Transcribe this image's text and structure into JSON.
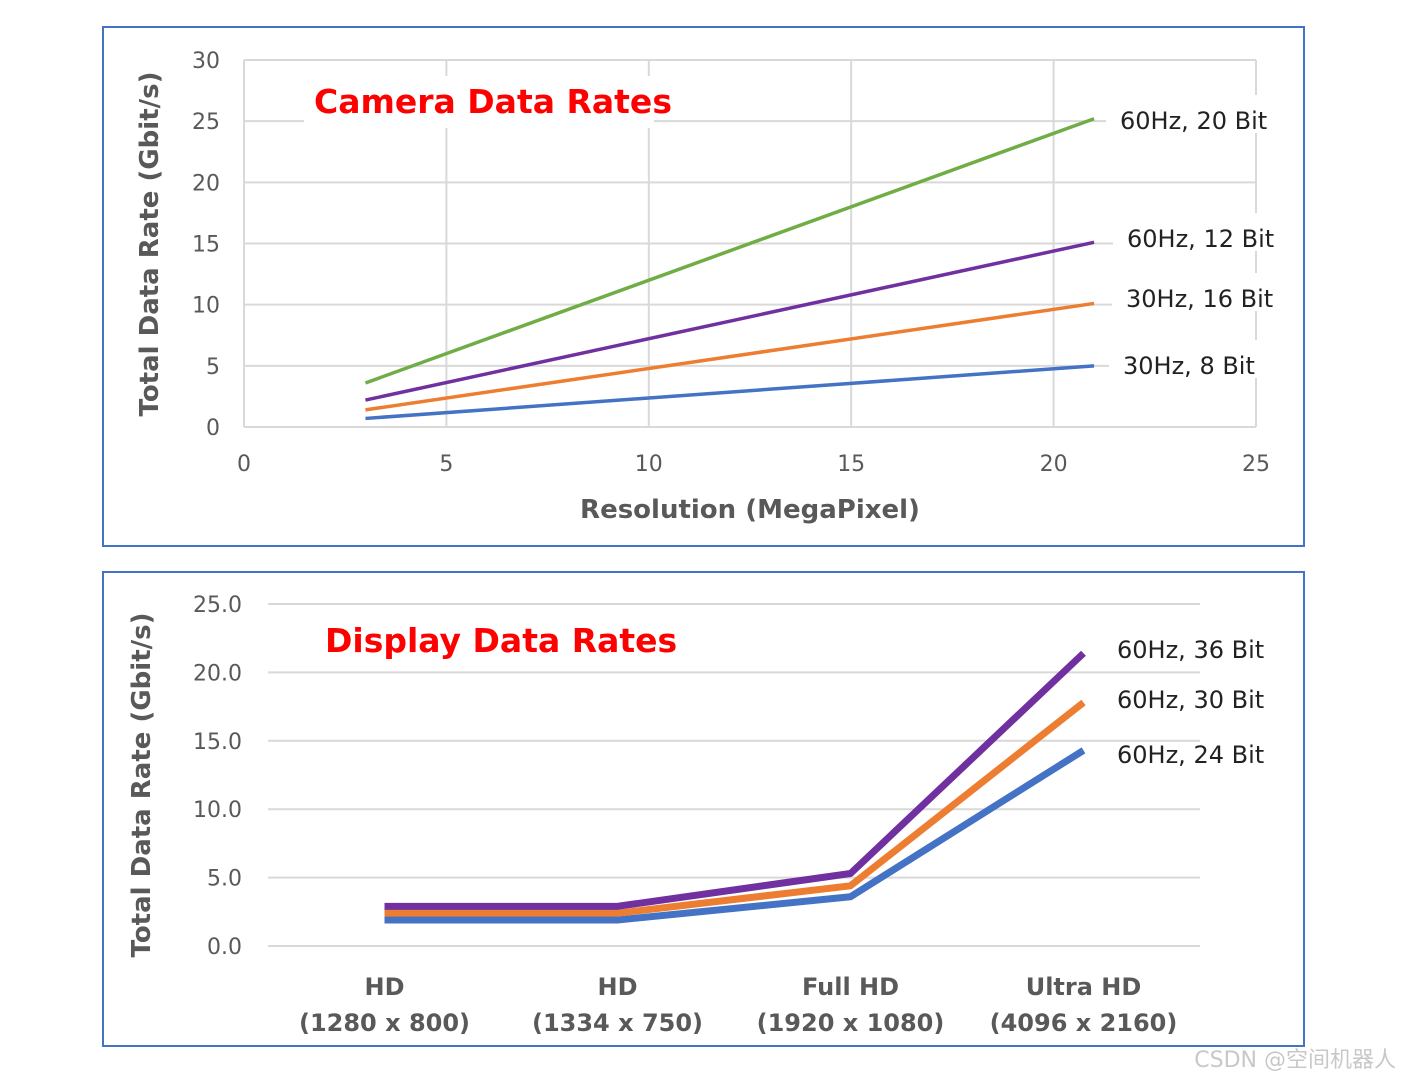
{
  "chart_data": [
    {
      "type": "line",
      "title": "Camera Data Rates",
      "xlabel": "Resolution (MegaPixel)",
      "ylabel": "Total Data Rate (Gbit/s)",
      "xlim": [
        0,
        25
      ],
      "ylim": [
        0,
        30
      ],
      "x_ticks": [
        "0",
        "5",
        "10",
        "15",
        "20",
        "25"
      ],
      "y_ticks": [
        "0",
        "5",
        "10",
        "15",
        "20",
        "25",
        "30"
      ],
      "series": [
        {
          "name": "60Hz, 20 Bit",
          "color": "#70ad47",
          "x": [
            3,
            21
          ],
          "y": [
            3.6,
            25.2
          ]
        },
        {
          "name": "60Hz, 12 Bit",
          "color": "#7030a0",
          "x": [
            3,
            21
          ],
          "y": [
            2.2,
            15.1
          ]
        },
        {
          "name": "30Hz, 16 Bit",
          "color": "#ed7d31",
          "x": [
            3,
            21
          ],
          "y": [
            1.4,
            10.1
          ]
        },
        {
          "name": "30Hz, 8 Bit",
          "color": "#4472c4",
          "x": [
            3,
            21
          ],
          "y": [
            0.7,
            5.0
          ]
        }
      ]
    },
    {
      "type": "line",
      "title": "Display Data Rates",
      "xlabel": "",
      "ylabel": "Total Data Rate (Gbit/s)",
      "ylim": [
        0,
        25
      ],
      "y_ticks": [
        "0.0",
        "5.0",
        "10.0",
        "15.0",
        "20.0",
        "25.0"
      ],
      "categories": [
        {
          "line1": "HD",
          "line2": "(1280 x 800)"
        },
        {
          "line1": "HD",
          "line2": "(1334 x 750)"
        },
        {
          "line1": "Full HD",
          "line2": "(1920 x 1080)"
        },
        {
          "line1": "Ultra HD",
          "line2": "(4096 x 2160)"
        }
      ],
      "series": [
        {
          "name": "60Hz, 36 Bit",
          "color": "#7030a0",
          "values": [
            2.9,
            2.9,
            5.3,
            21.4
          ]
        },
        {
          "name": "60Hz, 30 Bit",
          "color": "#ed7d31",
          "values": [
            2.4,
            2.4,
            4.4,
            17.8
          ]
        },
        {
          "name": "60Hz, 24 Bit",
          "color": "#4472c4",
          "values": [
            1.9,
            1.9,
            3.6,
            14.3
          ]
        }
      ]
    }
  ],
  "watermark": "CSDN @空间机器人",
  "colors": {
    "frame": "#4472c4",
    "title": "#ff0000",
    "grid": "#d9d9d9",
    "axis_text": "#595959"
  }
}
